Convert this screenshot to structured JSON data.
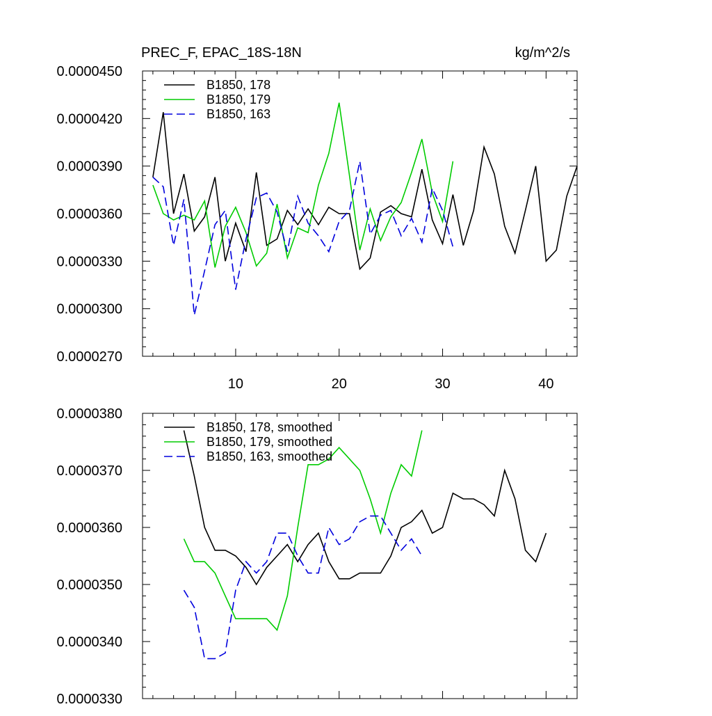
{
  "chart_data": [
    {
      "type": "line",
      "title": "PREC_F, EPAC_18S-18N",
      "units": "kg/m^2/s",
      "xlim": [
        1,
        43
      ],
      "ylim": [
        2.7e-05,
        4.5e-05
      ],
      "y_ticks": [
        2.7e-05,
        3e-05,
        3.3e-05,
        3.6e-05,
        3.9e-05,
        4.2e-05,
        4.5e-05
      ],
      "y_tick_labels": [
        "0.0000270",
        "0.0000300",
        "0.0000330",
        "0.0000360",
        "0.0000390",
        "0.0000420",
        "0.0000450"
      ],
      "x_ticks": [
        10,
        20,
        30,
        40
      ],
      "x_tick_labels": [
        "10",
        "20",
        "30",
        "40"
      ],
      "legend": "top-left",
      "series": [
        {
          "name": "B1850, 178",
          "color": "#000000",
          "dash": "solid",
          "x": [
            2,
            3,
            4,
            5,
            6,
            7,
            8,
            9,
            10,
            11,
            12,
            13,
            14,
            15,
            16,
            17,
            18,
            19,
            20,
            21,
            22,
            23,
            24,
            25,
            26,
            27,
            28,
            29,
            30,
            31,
            32,
            33,
            34,
            35,
            36,
            37,
            38,
            39,
            40,
            41,
            42,
            43
          ],
          "y": [
            3.83e-05,
            4.24e-05,
            3.6e-05,
            3.85e-05,
            3.49e-05,
            3.58e-05,
            3.83e-05,
            3.3e-05,
            3.54e-05,
            3.36e-05,
            3.86e-05,
            3.4e-05,
            3.44e-05,
            3.62e-05,
            3.53e-05,
            3.63e-05,
            3.53e-05,
            3.64e-05,
            3.6e-05,
            3.6e-05,
            3.25e-05,
            3.32e-05,
            3.61e-05,
            3.65e-05,
            3.6e-05,
            3.58e-05,
            3.88e-05,
            3.56e-05,
            3.41e-05,
            3.72e-05,
            3.4e-05,
            3.62e-05,
            4.02e-05,
            3.85e-05,
            3.52e-05,
            3.35e-05,
            3.62e-05,
            3.9e-05,
            3.3e-05,
            3.37e-05,
            3.71e-05,
            3.9e-05
          ]
        },
        {
          "name": "B1850, 179",
          "color": "#00cc00",
          "dash": "solid",
          "x": [
            2,
            3,
            4,
            5,
            6,
            7,
            8,
            9,
            10,
            11,
            12,
            13,
            14,
            15,
            16,
            17,
            18,
            19,
            20,
            21,
            22,
            23,
            24,
            25,
            26,
            27,
            28,
            29,
            30,
            31
          ],
          "y": [
            3.78e-05,
            3.6e-05,
            3.56e-05,
            3.59e-05,
            3.56e-05,
            3.68e-05,
            3.26e-05,
            3.52e-05,
            3.64e-05,
            3.48e-05,
            3.27e-05,
            3.35e-05,
            3.66e-05,
            3.32e-05,
            3.51e-05,
            3.48e-05,
            3.78e-05,
            3.98e-05,
            4.3e-05,
            3.84e-05,
            3.37e-05,
            3.63e-05,
            3.43e-05,
            3.58e-05,
            3.67e-05,
            3.86e-05,
            4.07e-05,
            3.73e-05,
            3.55e-05,
            3.93e-05
          ]
        },
        {
          "name": "B1850, 163",
          "color": "#0000dd",
          "dash": "dashed",
          "x": [
            2,
            3,
            4,
            5,
            6,
            7,
            8,
            9,
            10,
            11,
            12,
            13,
            14,
            15,
            16,
            17,
            18,
            19,
            20,
            21,
            22,
            23,
            24,
            25,
            26,
            27,
            28,
            29,
            30,
            31
          ],
          "y": [
            3.83e-05,
            3.77e-05,
            3.4e-05,
            3.69e-05,
            2.96e-05,
            3.24e-05,
            3.53e-05,
            3.62e-05,
            3.12e-05,
            3.44e-05,
            3.7e-05,
            3.73e-05,
            3.61e-05,
            3.36e-05,
            3.71e-05,
            3.54e-05,
            3.46e-05,
            3.36e-05,
            3.55e-05,
            3.62e-05,
            3.93e-05,
            3.47e-05,
            3.59e-05,
            3.62e-05,
            3.46e-05,
            3.57e-05,
            3.42e-05,
            3.76e-05,
            3.62e-05,
            3.39e-05
          ]
        }
      ]
    },
    {
      "type": "line",
      "title": "",
      "xlim": [
        1,
        43
      ],
      "ylim": [
        3.3e-05,
        3.8e-05
      ],
      "y_ticks": [
        3.3e-05,
        3.4e-05,
        3.5e-05,
        3.6e-05,
        3.7e-05,
        3.8e-05
      ],
      "y_tick_labels": [
        "0.0000330",
        "0.0000340",
        "0.0000350",
        "0.0000360",
        "0.0000370",
        "0.0000380"
      ],
      "x_ticks": [
        10,
        20,
        30,
        40
      ],
      "x_tick_labels": [],
      "legend": "top-left",
      "series": [
        {
          "name": "B1850, 178, smoothed",
          "color": "#000000",
          "dash": "solid",
          "x": [
            5,
            6,
            7,
            8,
            9,
            10,
            11,
            12,
            13,
            14,
            15,
            16,
            17,
            18,
            19,
            20,
            21,
            22,
            23,
            24,
            25,
            26,
            27,
            28,
            29,
            30,
            31,
            32,
            33,
            34,
            35,
            36,
            37,
            38,
            39,
            40
          ],
          "y": [
            3.77e-05,
            3.69e-05,
            3.6e-05,
            3.56e-05,
            3.56e-05,
            3.55e-05,
            3.53e-05,
            3.5e-05,
            3.53e-05,
            3.55e-05,
            3.57e-05,
            3.54e-05,
            3.57e-05,
            3.59e-05,
            3.54e-05,
            3.51e-05,
            3.51e-05,
            3.52e-05,
            3.52e-05,
            3.52e-05,
            3.55e-05,
            3.6e-05,
            3.61e-05,
            3.63e-05,
            3.59e-05,
            3.6e-05,
            3.66e-05,
            3.65e-05,
            3.65e-05,
            3.64e-05,
            3.62e-05,
            3.7e-05,
            3.65e-05,
            3.56e-05,
            3.54e-05,
            3.59e-05
          ]
        },
        {
          "name": "B1850, 179, smoothed",
          "color": "#00cc00",
          "dash": "solid",
          "x": [
            5,
            6,
            7,
            8,
            9,
            10,
            11,
            12,
            13,
            14,
            15,
            16,
            17,
            18,
            19,
            20,
            21,
            22,
            23,
            24,
            25,
            26,
            27,
            28
          ],
          "y": [
            3.58e-05,
            3.54e-05,
            3.54e-05,
            3.52e-05,
            3.48e-05,
            3.44e-05,
            3.44e-05,
            3.44e-05,
            3.44e-05,
            3.42e-05,
            3.48e-05,
            3.6e-05,
            3.71e-05,
            3.71e-05,
            3.72e-05,
            3.74e-05,
            3.72e-05,
            3.7e-05,
            3.65e-05,
            3.59e-05,
            3.66e-05,
            3.71e-05,
            3.69e-05,
            3.77e-05
          ]
        },
        {
          "name": "B1850, 163, smoothed",
          "color": "#0000dd",
          "dash": "dashed",
          "x": [
            5,
            6,
            7,
            8,
            9,
            10,
            11,
            12,
            13,
            14,
            15,
            16,
            17,
            18,
            19,
            20,
            21,
            22,
            23,
            24,
            25,
            26,
            27,
            28
          ],
          "y": [
            3.49e-05,
            3.46e-05,
            3.37e-05,
            3.37e-05,
            3.38e-05,
            3.49e-05,
            3.54e-05,
            3.52e-05,
            3.54e-05,
            3.59e-05,
            3.59e-05,
            3.55e-05,
            3.52e-05,
            3.52e-05,
            3.6e-05,
            3.57e-05,
            3.58e-05,
            3.61e-05,
            3.62e-05,
            3.62e-05,
            3.59e-05,
            3.56e-05,
            3.58e-05,
            3.55e-05
          ]
        }
      ]
    }
  ]
}
